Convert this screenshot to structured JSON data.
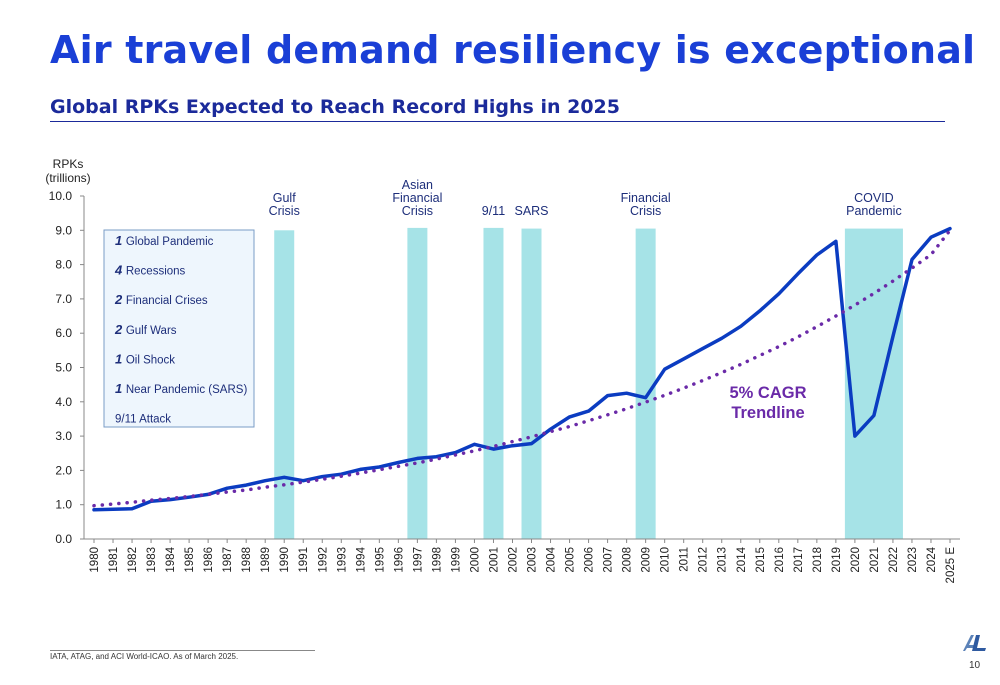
{
  "slide": {
    "title": "Air travel demand resiliency is exceptional",
    "subtitle": "Global RPKs Expected to Reach Record Highs in 2025",
    "footnote": "IATA, ATAG, and ACI World-ICAO. As of March 2025.",
    "page_number": "10",
    "logo_icon": "al-logo-icon"
  },
  "colors": {
    "title": "#1a3fd6",
    "subtitle": "#1b2a9a",
    "rpk_line": "#0b3cc1",
    "trendline": "#6a2aa8",
    "crisis_band": "#a6e3e7",
    "legend_fill": "#eef6fd",
    "legend_border": "#7a9cc6"
  },
  "chart_data": {
    "type": "line",
    "ylabel": [
      "RPKs",
      "(trillions)"
    ],
    "ylim": [
      0,
      10
    ],
    "yticks": [
      "0.0",
      "1.0",
      "2.0",
      "3.0",
      "4.0",
      "5.0",
      "6.0",
      "7.0",
      "8.0",
      "9.0",
      "10.0"
    ],
    "categories": [
      "1980",
      "1981",
      "1982",
      "1983",
      "1984",
      "1985",
      "1986",
      "1987",
      "1988",
      "1989",
      "1990",
      "1991",
      "1992",
      "1993",
      "1994",
      "1995",
      "1996",
      "1997",
      "1998",
      "1999",
      "2000",
      "2001",
      "2002",
      "2003",
      "2004",
      "2005",
      "2006",
      "2007",
      "2008",
      "2009",
      "2010",
      "2011",
      "2012",
      "2013",
      "2014",
      "2015",
      "2016",
      "2017",
      "2018",
      "2019",
      "2020",
      "2021",
      "2022",
      "2023",
      "2024",
      "2025 E"
    ],
    "series": [
      {
        "style": "solid",
        "values": [
          0.85,
          0.87,
          0.88,
          1.1,
          1.15,
          1.22,
          1.3,
          1.48,
          1.57,
          1.7,
          1.8,
          1.7,
          1.82,
          1.89,
          2.03,
          2.1,
          2.23,
          2.35,
          2.4,
          2.52,
          2.76,
          2.62,
          2.72,
          2.78,
          3.2,
          3.56,
          3.73,
          4.18,
          4.25,
          4.12,
          4.95,
          5.25,
          5.55,
          5.85,
          6.2,
          6.65,
          7.15,
          7.73,
          8.28,
          8.68,
          3.0,
          3.6,
          5.9,
          8.15,
          8.8,
          9.05
        ]
      },
      {
        "style": "dotted",
        "values": [
          0.97,
          1.02,
          1.07,
          1.13,
          1.18,
          1.24,
          1.3,
          1.37,
          1.43,
          1.51,
          1.58,
          1.66,
          1.74,
          1.83,
          1.92,
          2.02,
          2.12,
          2.22,
          2.33,
          2.45,
          2.57,
          2.7,
          2.84,
          2.98,
          3.13,
          3.28,
          3.45,
          3.62,
          3.8,
          3.99,
          4.19,
          4.4,
          4.62,
          4.85,
          5.09,
          5.35,
          5.61,
          5.89,
          6.19,
          6.5,
          6.82,
          7.16,
          7.52,
          7.9,
          8.29,
          9.0
        ]
      }
    ],
    "events": [
      {
        "label": [
          "Gulf",
          "Crisis"
        ],
        "start": "1990",
        "end": "1990",
        "height": 9.0
      },
      {
        "label": [
          "Asian",
          "Financial",
          "Crisis"
        ],
        "start": "1997",
        "end": "1997",
        "height": 9.07
      },
      {
        "label": [
          "9/11"
        ],
        "start": "2001",
        "end": "2001",
        "height": 9.07
      },
      {
        "label": [
          "SARS"
        ],
        "start": "2003",
        "end": "2003",
        "height": 9.05
      },
      {
        "label": [
          "Financial",
          "Crisis"
        ],
        "start": "2009",
        "end": "2009",
        "height": 9.05
      },
      {
        "label": [
          "COVID",
          "Pandemic"
        ],
        "start": "2020",
        "end": "2022",
        "height": 9.05
      }
    ],
    "annotation": [
      "5% CAGR",
      "Trendline"
    ],
    "legend_box": [
      {
        "num": "1",
        "text": "Global Pandemic"
      },
      {
        "num": "4",
        "text": "Recessions"
      },
      {
        "num": "2",
        "text": "Financial Crises"
      },
      {
        "num": "2",
        "text": "Gulf Wars"
      },
      {
        "num": "1",
        "text": "Oil Shock"
      },
      {
        "num": "1",
        "text": "Near Pandemic (SARS)"
      },
      {
        "num": "",
        "text": "9/11 Attack"
      }
    ],
    "grid": false
  }
}
